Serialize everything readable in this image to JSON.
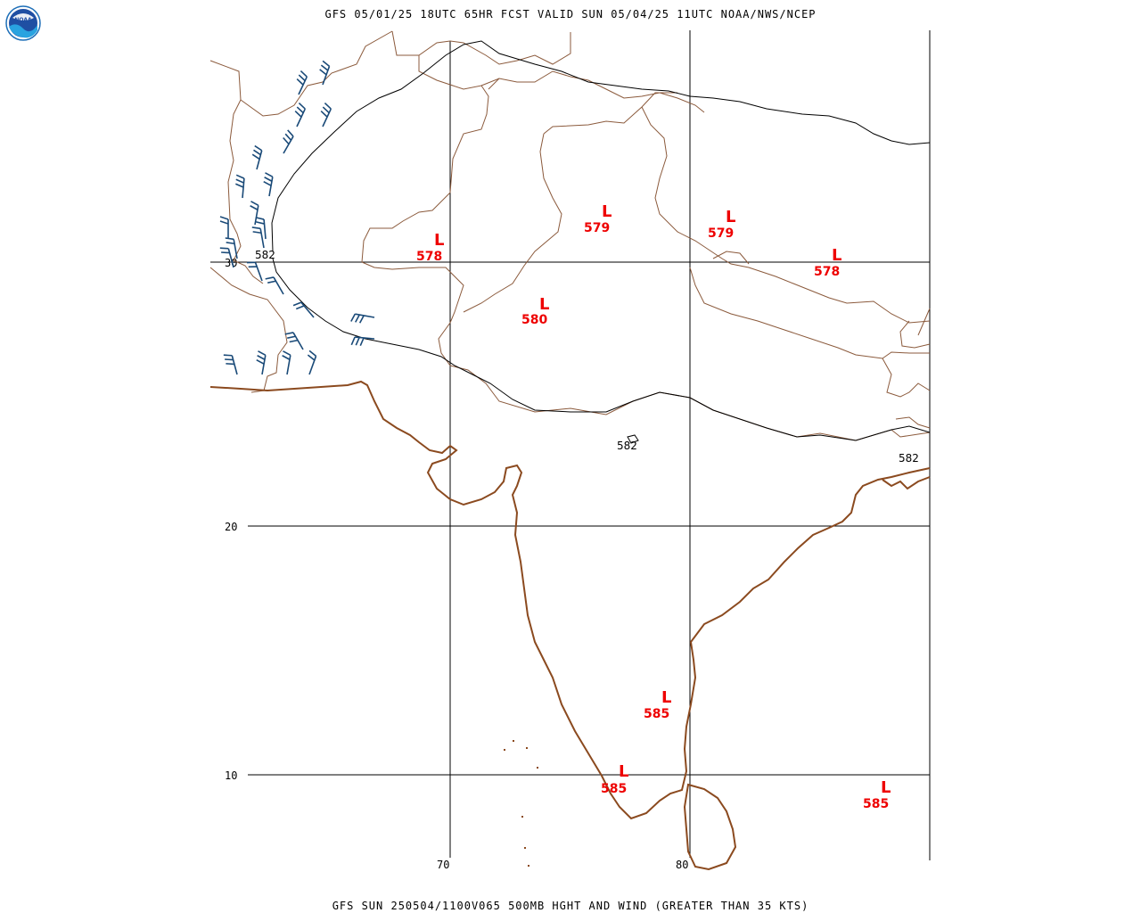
{
  "header": {
    "title": "GFS 05/01/25 18UTC 65HR FCST VALID SUN 05/04/25 11UTC NOAA/NWS/NCEP",
    "footer": "GFS SUN 250504/1100V065 500MB HGHT AND WIND (GREATER THAN 35 KTS)",
    "logo_text": "NOAA"
  },
  "colors": {
    "coast": "#8b4a1f",
    "border": "#8b5a3c",
    "contour": "#000000",
    "low": "#ee0000",
    "barb": "#1a4a78",
    "grid": "#000000"
  },
  "grid": {
    "lat_labels": [
      "30",
      "20",
      "10"
    ],
    "lon_labels": [
      "70",
      "80"
    ]
  },
  "contours": [
    {
      "value": "582"
    },
    {
      "value": "582"
    },
    {
      "value": "582"
    }
  ],
  "lows": [
    {
      "symbol": "L",
      "value": "578"
    },
    {
      "symbol": "L",
      "value": "579"
    },
    {
      "symbol": "L",
      "value": "579"
    },
    {
      "symbol": "L",
      "value": "578"
    },
    {
      "symbol": "L",
      "value": "580"
    },
    {
      "symbol": "L",
      "value": "585"
    },
    {
      "symbol": "L",
      "value": "585"
    },
    {
      "symbol": "L",
      "value": "585"
    }
  ],
  "wind_barbs": {
    "icon": "wind-barb-icon",
    "count": 24
  }
}
